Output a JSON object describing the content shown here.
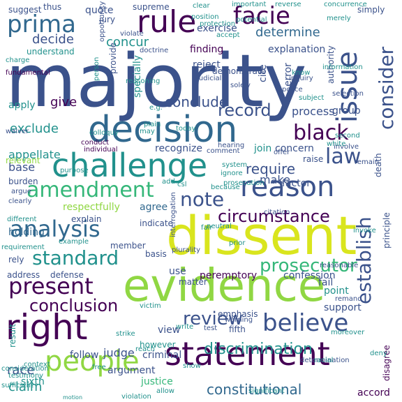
{
  "palette": {
    "dark_purple": "#440154",
    "indigo": "#3b528b",
    "deep_blue": "#31688e",
    "teal": "#21918c",
    "sea_green": "#2a9d8f",
    "green": "#35b779",
    "lime": "#90d743",
    "yellow": "#d9e51e"
  },
  "words": [
    {
      "text": "majority"
    },
    {
      "text": "dissent"
    },
    {
      "text": "evidence"
    },
    {
      "text": "decision"
    },
    {
      "text": "challenge"
    },
    {
      "text": "right"
    },
    {
      "text": "statement"
    },
    {
      "text": "people"
    },
    {
      "text": "reason"
    },
    {
      "text": "rule"
    },
    {
      "text": "facie"
    },
    {
      "text": "prima"
    },
    {
      "text": "issue"
    },
    {
      "text": "consider"
    },
    {
      "text": "amendment"
    },
    {
      "text": "analysis"
    },
    {
      "text": "present"
    },
    {
      "text": "establish"
    },
    {
      "text": "believe"
    },
    {
      "text": "black"
    },
    {
      "text": "law"
    },
    {
      "text": "note"
    },
    {
      "text": "standard"
    },
    {
      "text": "review"
    },
    {
      "text": "conclusion"
    },
    {
      "text": "circumstance"
    },
    {
      "text": "prosecutor"
    },
    {
      "text": "discrimination"
    },
    {
      "text": "constitutional"
    },
    {
      "text": "determine"
    },
    {
      "text": "conclude"
    },
    {
      "text": "record"
    },
    {
      "text": "exclude"
    },
    {
      "text": "require"
    },
    {
      "text": "decide"
    },
    {
      "text": "concur"
    },
    {
      "text": "give"
    },
    {
      "text": "appellate"
    },
    {
      "text": "base"
    },
    {
      "text": "claim"
    },
    {
      "text": "race"
    },
    {
      "text": "judge"
    },
    {
      "text": "process"
    },
    {
      "text": "make"
    },
    {
      "text": "holding"
    },
    {
      "text": "agree"
    },
    {
      "text": "quote"
    },
    {
      "text": "supreme"
    },
    {
      "text": "exercise"
    },
    {
      "text": "explanation"
    },
    {
      "text": "peremptory"
    },
    {
      "text": "confession"
    },
    {
      "text": "apply"
    },
    {
      "text": "join"
    },
    {
      "text": "concern"
    },
    {
      "text": "recognize"
    },
    {
      "text": "specially"
    },
    {
      "text": "reject"
    },
    {
      "text": "finding"
    },
    {
      "text": "cite"
    },
    {
      "text": "error"
    },
    {
      "text": "factor"
    },
    {
      "text": "respectfully"
    },
    {
      "text": "argument"
    },
    {
      "text": "justice"
    },
    {
      "text": "sixth"
    },
    {
      "text": "follow"
    },
    {
      "text": "view"
    },
    {
      "text": "however"
    },
    {
      "text": "criminal"
    },
    {
      "text": "fifth"
    },
    {
      "text": "support"
    },
    {
      "text": "point"
    },
    {
      "text": "emphasis"
    },
    {
      "text": "group"
    },
    {
      "text": "principle"
    },
    {
      "text": "authority"
    },
    {
      "text": "accord"
    },
    {
      "text": "disagree"
    },
    {
      "text": "simply"
    },
    {
      "text": "suggest"
    },
    {
      "text": "thus"
    },
    {
      "text": "jury"
    },
    {
      "text": "provide"
    },
    {
      "text": "death"
    },
    {
      "text": "raise"
    },
    {
      "text": "explain"
    },
    {
      "text": "indicate"
    },
    {
      "text": "member"
    },
    {
      "text": "address"
    },
    {
      "text": "defense"
    },
    {
      "text": "basis"
    },
    {
      "text": "use"
    },
    {
      "text": "fail"
    },
    {
      "text": "interrogation"
    },
    {
      "text": "rely"
    },
    {
      "text": "burden"
    },
    {
      "text": "relevant"
    },
    {
      "text": "argue"
    },
    {
      "text": "result"
    },
    {
      "text": "understand"
    },
    {
      "text": "doctrine"
    },
    {
      "text": "violate"
    },
    {
      "text": "waiver"
    },
    {
      "text": "plurality"
    },
    {
      "text": "matter"
    },
    {
      "text": "individual"
    },
    {
      "text": "conduct"
    },
    {
      "text": "hearing"
    },
    {
      "text": "comment"
    },
    {
      "text": "test"
    },
    {
      "text": "warning"
    },
    {
      "text": "determination"
    },
    {
      "text": "context"
    },
    {
      "text": "testimony"
    },
    {
      "text": "requirement"
    },
    {
      "text": "reasonable"
    },
    {
      "text": "citation"
    },
    {
      "text": "remand"
    },
    {
      "text": "demonstrate"
    },
    {
      "text": "judicial"
    },
    {
      "text": "solely"
    },
    {
      "text": "accept"
    },
    {
      "text": "potential"
    },
    {
      "text": "offer"
    },
    {
      "text": "involve"
    },
    {
      "text": "police"
    },
    {
      "text": "inquiry"
    },
    {
      "text": "selection"
    },
    {
      "text": "know"
    },
    {
      "text": "remain"
    },
    {
      "text": "clearly"
    },
    {
      "text": "different"
    },
    {
      "text": "fundamental"
    },
    {
      "text": "purpose"
    },
    {
      "text": "opportunity"
    },
    {
      "text": "clear"
    },
    {
      "text": "concurrence"
    },
    {
      "text": "important"
    },
    {
      "text": "reverse"
    },
    {
      "text": "person"
    },
    {
      "text": "add"
    },
    {
      "text": "prosecution"
    },
    {
      "text": "neutral"
    },
    {
      "text": "because"
    },
    {
      "text": "significant"
    },
    {
      "text": "violation"
    },
    {
      "text": "allow"
    },
    {
      "text": "racial"
    },
    {
      "text": "deny"
    },
    {
      "text": "moreover"
    },
    {
      "text": "reach"
    },
    {
      "text": "e.g."
    },
    {
      "text": "plain"
    },
    {
      "text": "may"
    },
    {
      "text": "motion"
    },
    {
      "text": "system"
    },
    {
      "text": "today"
    },
    {
      "text": "merely"
    },
    {
      "text": "invoke"
    },
    {
      "text": "prior"
    },
    {
      "text": "fair"
    },
    {
      "text": "example"
    },
    {
      "text": "information"
    },
    {
      "text": "subject"
    },
    {
      "text": "white"
    },
    {
      "text": "second"
    },
    {
      "text": "protection"
    },
    {
      "text": "position"
    },
    {
      "text": "colloquy"
    },
    {
      "text": "reasoning"
    },
    {
      "text": "ignore"
    },
    {
      "text": "csl"
    },
    {
      "text": "sufficient"
    },
    {
      "text": "consideration"
    },
    {
      "text": "strike"
    },
    {
      "text": "free"
    },
    {
      "text": "victim"
    },
    {
      "text": "show"
    },
    {
      "text": "write"
    },
    {
      "text": "charge"
    }
  ]
}
